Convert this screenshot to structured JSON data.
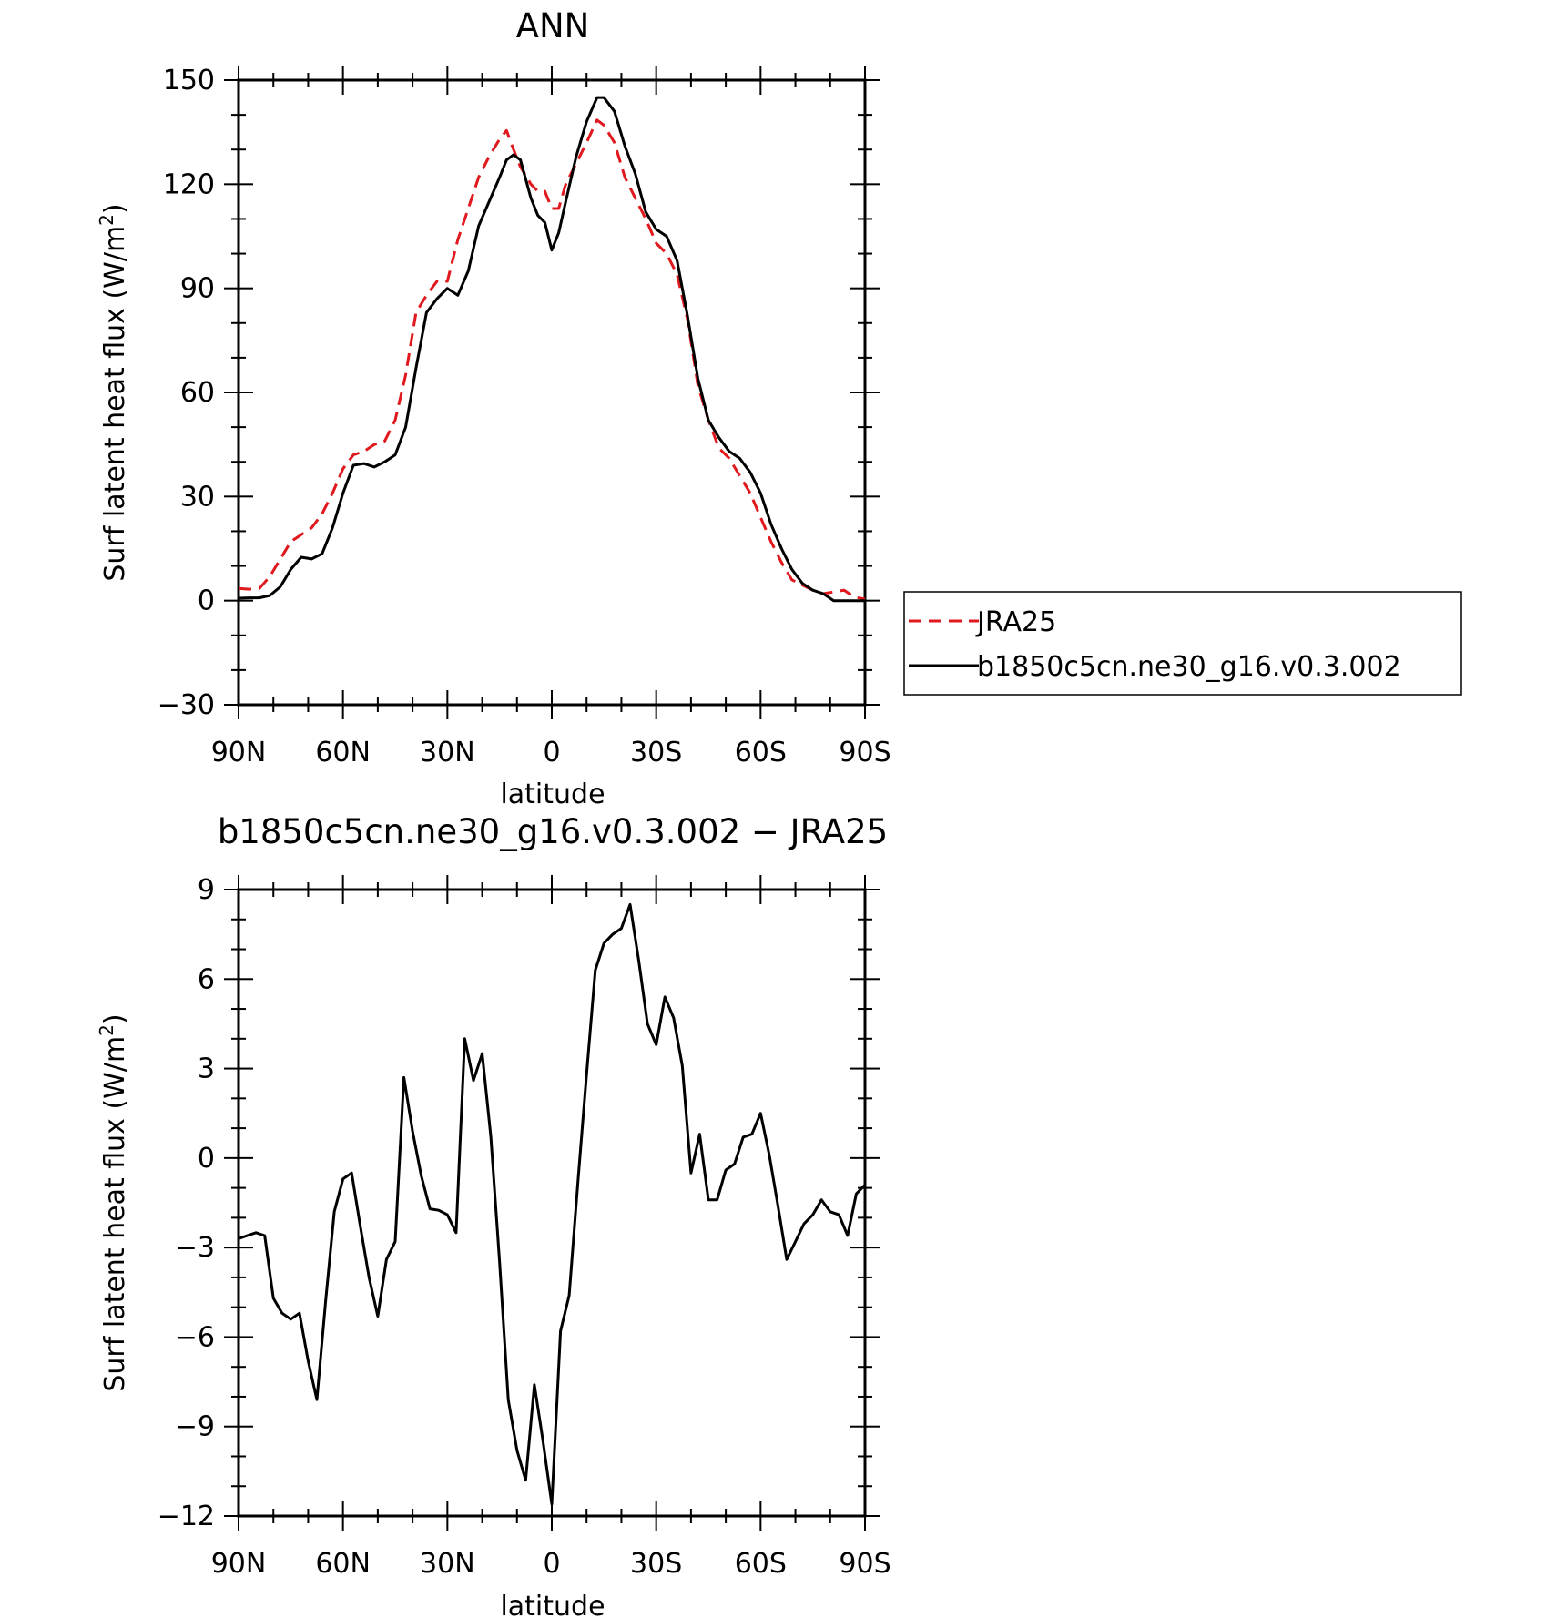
{
  "chart_data": [
    {
      "type": "line",
      "title": "ANN",
      "xlabel": "latitude",
      "ylabel": "Surf latent heat flux (W/m",
      "ylabel_sup": "2",
      "ylabel_tail": ")",
      "xlim": [
        90,
        -90
      ],
      "ylim": [
        -30,
        150
      ],
      "x_ticks": [
        90,
        60,
        30,
        0,
        -30,
        -60,
        -90
      ],
      "x_tick_labels": [
        "90N",
        "60N",
        "30N",
        "0",
        "30S",
        "60S",
        "90S"
      ],
      "y_ticks": [
        -30,
        0,
        30,
        60,
        90,
        120,
        150
      ],
      "y_tick_labels": [
        "−30",
        "0",
        "30",
        "60",
        "90",
        "120",
        "150"
      ],
      "legend_position": "right",
      "series": [
        {
          "name": "JRA25",
          "color": "#e0191e",
          "dash": "dashed",
          "x": [
            90,
            87,
            84,
            81,
            78,
            75,
            72,
            69,
            66,
            63,
            60,
            57,
            54,
            51,
            48,
            45,
            42,
            39,
            36,
            33,
            30,
            27,
            24,
            21,
            18,
            15,
            13,
            11,
            9,
            6,
            4,
            2,
            0,
            -2,
            -4,
            -7,
            -10,
            -13,
            -15,
            -18,
            -21,
            -24,
            -27,
            -30,
            -33,
            -36,
            -39,
            -42,
            -45,
            -48,
            -51,
            -54,
            -57,
            -60,
            -63,
            -66,
            -69,
            -72,
            -75,
            -78,
            -81,
            -84,
            -87,
            -90
          ],
          "y": [
            3.5,
            3.3,
            3.5,
            7,
            12,
            17,
            19,
            21,
            25,
            31,
            38,
            42,
            43,
            45,
            46,
            52,
            65,
            83,
            88,
            92,
            92,
            104,
            113,
            122,
            128,
            133,
            135.5,
            130,
            125,
            120,
            118,
            118,
            113,
            113,
            120,
            126,
            132,
            138.5,
            137,
            132,
            122,
            116,
            110,
            103,
            100,
            94,
            81,
            62,
            52,
            44,
            41,
            36,
            31,
            24,
            17,
            11,
            6,
            4.5,
            3,
            2,
            2.5,
            3,
            1,
            0.5
          ]
        },
        {
          "name": "b1850c5cn.ne30_g16.v0.3.002",
          "color": "#000000",
          "dash": "solid",
          "x": [
            90,
            87,
            84,
            81,
            78,
            75,
            72,
            69,
            66,
            63,
            60,
            57,
            54,
            51,
            48,
            45,
            42,
            39,
            36,
            33,
            30,
            27,
            24,
            21,
            18,
            15,
            13,
            11,
            9,
            6,
            4,
            2,
            0,
            -2,
            -4,
            -7,
            -10,
            -13,
            -15,
            -18,
            -21,
            -24,
            -27,
            -30,
            -33,
            -36,
            -39,
            -42,
            -45,
            -48,
            -51,
            -54,
            -57,
            -60,
            -63,
            -66,
            -69,
            -72,
            -75,
            -78,
            -81,
            -84,
            -87,
            -90
          ],
          "y": [
            0.7,
            0.8,
            0.8,
            1.5,
            4,
            9,
            12.5,
            12,
            13.5,
            21,
            31,
            39,
            39.5,
            38.5,
            40,
            42,
            50,
            67,
            83,
            87,
            90,
            88,
            95,
            108,
            115,
            122,
            127,
            128.5,
            127,
            116,
            111,
            109,
            101,
            106,
            115,
            128,
            138,
            145,
            145,
            141,
            131,
            123,
            112,
            107,
            105,
            98,
            82,
            64,
            52,
            47,
            43,
            41,
            37,
            31,
            22,
            15,
            9,
            5,
            3,
            2,
            0,
            0,
            0,
            0
          ]
        }
      ]
    },
    {
      "type": "line",
      "title": "b1850c5cn.ne30_g16.v0.3.002 − JRA25",
      "xlabel": "latitude",
      "ylabel": "Surf latent heat flux (W/m",
      "ylabel_sup": "2",
      "ylabel_tail": ")",
      "xlim": [
        90,
        -90
      ],
      "ylim": [
        -12,
        9
      ],
      "x_ticks": [
        90,
        60,
        30,
        0,
        -30,
        -60,
        -90
      ],
      "x_tick_labels": [
        "90N",
        "60N",
        "30N",
        "0",
        "30S",
        "60S",
        "90S"
      ],
      "y_ticks": [
        -12,
        -9,
        -6,
        -3,
        0,
        3,
        6,
        9
      ],
      "y_tick_labels": [
        "−12",
        "−9",
        "−6",
        "−3",
        "0",
        "3",
        "6",
        "9"
      ],
      "series": [
        {
          "color": "#000000",
          "dash": "solid",
          "x": [
            90,
            87.5,
            85,
            82.5,
            80,
            77.5,
            75,
            72.5,
            70,
            67.5,
            65,
            62.5,
            60,
            57.5,
            55,
            52.5,
            50,
            47.5,
            45,
            42.5,
            40,
            37.5,
            35,
            32.5,
            30,
            27.5,
            25,
            22.5,
            20,
            17.5,
            15,
            12.5,
            10,
            7.5,
            5,
            2.5,
            0,
            -2.5,
            -5,
            -7.5,
            -10,
            -12.5,
            -15,
            -17.5,
            -20,
            -22.5,
            -25,
            -27.5,
            -30,
            -32.5,
            -35,
            -37.5,
            -40,
            -42.5,
            -45,
            -47.5,
            -50,
            -52.5,
            -55,
            -57.5,
            -60,
            -62.5,
            -65,
            -67.5,
            -70,
            -72.5,
            -75,
            -77.5,
            -80,
            -82.5,
            -85,
            -87.5,
            -90
          ],
          "y": [
            -2.7,
            -2.6,
            -2.5,
            -2.6,
            -4.7,
            -5.2,
            -5.4,
            -5.2,
            -6.8,
            -8.1,
            -4.8,
            -1.8,
            -0.7,
            -0.5,
            -2.3,
            -4.0,
            -5.3,
            -3.4,
            -2.8,
            2.7,
            0.9,
            -0.6,
            -1.7,
            -1.75,
            -1.9,
            -2.5,
            4.0,
            2.6,
            3.5,
            0.7,
            -3.5,
            -8.1,
            -9.8,
            -10.8,
            -7.6,
            -9.5,
            -11.6,
            -5.8,
            -4.6,
            -0.8,
            2.8,
            6.3,
            7.2,
            7.5,
            7.7,
            8.5,
            6.6,
            4.5,
            3.8,
            5.4,
            4.7,
            3.1,
            -0.5,
            0.8,
            -1.4,
            -1.4,
            -0.4,
            -0.2,
            0.7,
            0.8,
            1.5,
            0.1,
            -1.6,
            -3.4,
            -2.8,
            -2.2,
            -1.9,
            -1.4,
            -1.8,
            -1.9,
            -2.6,
            -1.2,
            -0.9
          ]
        }
      ]
    }
  ]
}
